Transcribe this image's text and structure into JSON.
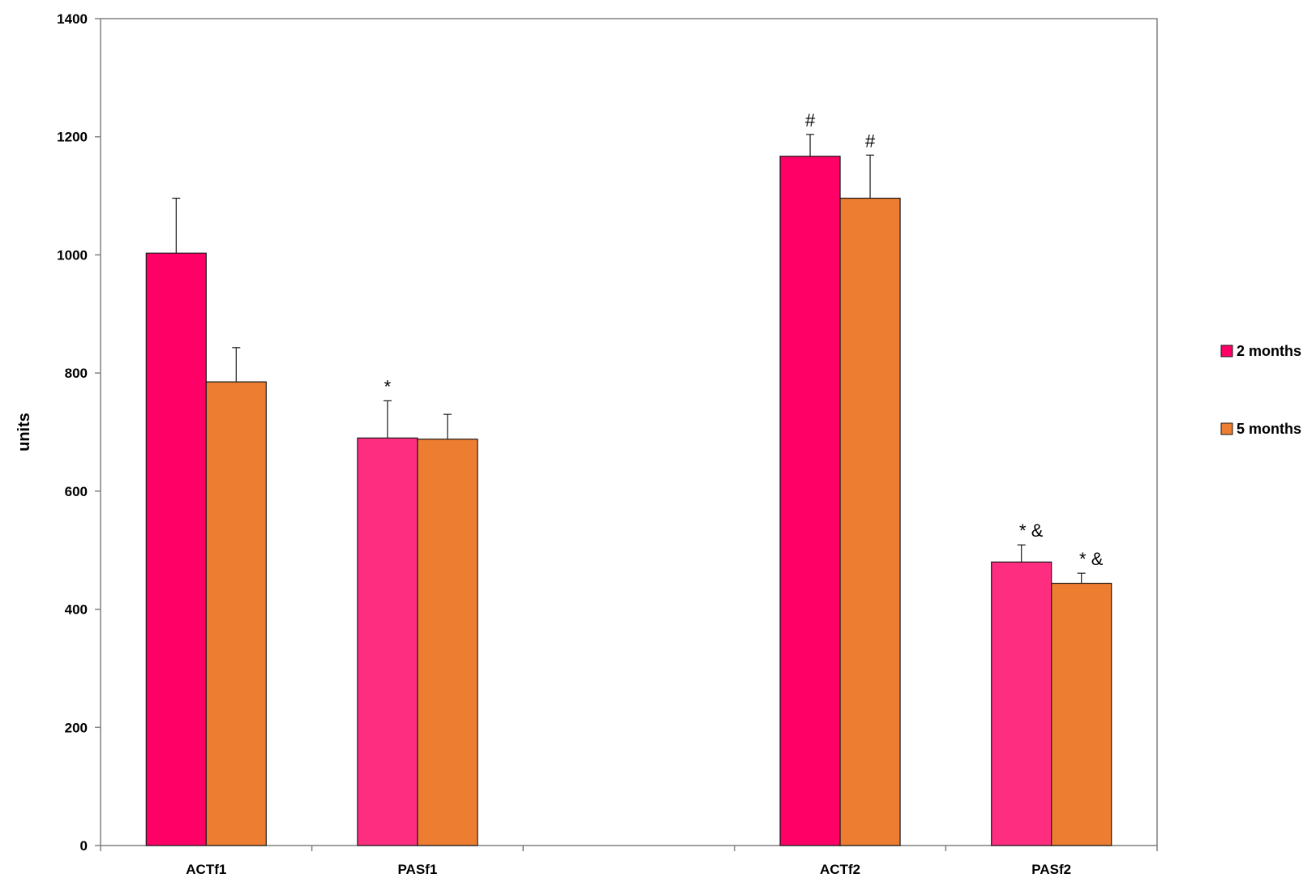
{
  "chart_data": {
    "type": "bar",
    "ylabel": "units",
    "ylim": [
      0,
      1400
    ],
    "yticks": [
      0,
      200,
      400,
      600,
      800,
      1000,
      1200,
      1400
    ],
    "grid": false,
    "legend_position": "right",
    "groups": [
      {
        "label": "ACTf1",
        "bars": [
          {
            "series": "2 months",
            "value": 1003,
            "error": 93,
            "color": "#FF0066",
            "annotation": ""
          },
          {
            "series": "5 months",
            "value": 785,
            "error": 58,
            "color": "#ED7D31",
            "annotation": ""
          }
        ]
      },
      {
        "label": "PASf1",
        "bars": [
          {
            "series": "2 months",
            "value": 690,
            "error": 63,
            "color": "#FF2D80",
            "annotation": "*"
          },
          {
            "series": "5 months",
            "value": 688,
            "error": 42,
            "color": "#ED7D31",
            "annotation": ""
          }
        ]
      },
      {
        "label": "",
        "bars": []
      },
      {
        "label": "ACTf2",
        "bars": [
          {
            "series": "2 months",
            "value": 1167,
            "error": 37,
            "color": "#FF0066",
            "annotation": "#"
          },
          {
            "series": "5 months",
            "value": 1096,
            "error": 73,
            "color": "#ED7D31",
            "annotation": "#"
          }
        ]
      },
      {
        "label": "PASf2",
        "bars": [
          {
            "series": "2 months",
            "value": 480,
            "error": 29,
            "color": "#FF2D80",
            "annotation": "* &"
          },
          {
            "series": "5 months",
            "value": 444,
            "error": 17,
            "color": "#ED7D31",
            "annotation": "* &"
          }
        ]
      }
    ],
    "legend": [
      {
        "name": "2 months",
        "color": "#FF0066"
      },
      {
        "name": "5 months",
        "color": "#ED7D31"
      }
    ]
  }
}
